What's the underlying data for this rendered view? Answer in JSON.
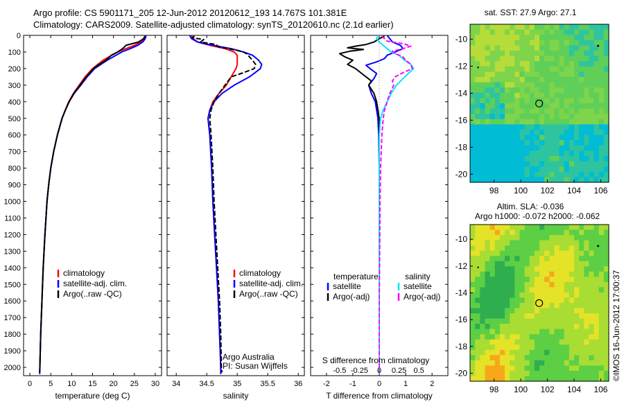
{
  "header": {
    "line1": "Argo profile: CS 5901171_205 12-Jun-2012 20120612_193 14.767S 101.381E",
    "line2": "Climatology: CARS2009. Satellite-adjusted climatology: synTS_20120610.nc (2.1d earlier)"
  },
  "colors": {
    "climatology": "#ff0000",
    "satellite": "#0000ff",
    "argo": "#000000",
    "sal_satellite": "#00e5ff",
    "sal_argo": "#ff00ff"
  },
  "depth_axis": {
    "ticks": [
      0,
      100,
      200,
      300,
      400,
      500,
      600,
      700,
      800,
      900,
      1000,
      1100,
      1200,
      1300,
      1400,
      1500,
      1600,
      1700,
      1800,
      1900,
      2000
    ],
    "ylim": [
      2050,
      0
    ]
  },
  "chart_data": [
    {
      "type": "line",
      "id": "temperature",
      "xlabel": "temperature (deg C)",
      "xlim": [
        -1.5,
        31.5
      ],
      "xticks": [
        0,
        5,
        10,
        15,
        20,
        25,
        30
      ],
      "xticklabels": [
        "0",
        "5",
        "10",
        "15",
        "20",
        "25",
        "30"
      ],
      "legend": [
        "climatology",
        "satellite-adj. clim.",
        "Argo(..raw -QC)"
      ],
      "series": [
        {
          "name": "climatology",
          "depth": [
            0,
            20,
            40,
            60,
            80,
            100,
            150,
            200,
            250,
            300,
            350,
            400,
            450,
            500,
            600,
            700,
            800,
            900,
            1000,
            1200,
            1400,
            1600,
            1800,
            2000,
            2040
          ],
          "values": [
            27.6,
            27.4,
            26.6,
            25.0,
            23.0,
            21.0,
            17.5,
            15.0,
            13.2,
            11.8,
            10.4,
            9.3,
            8.5,
            7.7,
            6.6,
            5.7,
            5.0,
            4.5,
            4.1,
            3.6,
            3.2,
            2.9,
            2.6,
            2.4,
            2.35
          ]
        },
        {
          "name": "satellite-adj. clim.",
          "depth": [
            0,
            20,
            40,
            60,
            80,
            100,
            150,
            200,
            250,
            300,
            350,
            400,
            450,
            500,
            600,
            700,
            800,
            900,
            1000,
            1200,
            1400,
            1600,
            1800,
            2000,
            2040
          ],
          "values": [
            27.8,
            27.6,
            27.0,
            25.8,
            24.0,
            22.0,
            18.5,
            15.5,
            13.7,
            12.2,
            10.6,
            9.4,
            8.5,
            7.7,
            6.6,
            5.7,
            5.0,
            4.5,
            4.1,
            3.6,
            3.2,
            2.9,
            2.6,
            2.4,
            2.35
          ]
        },
        {
          "name": "Argo(..raw -QC)",
          "depth": [
            5,
            20,
            40,
            60,
            80,
            100,
            120,
            150,
            180,
            200,
            250,
            300,
            350,
            400,
            450,
            500,
            600,
            700,
            800,
            900,
            1000,
            1200,
            1400,
            1600,
            1800,
            2000,
            2030
          ],
          "values": [
            27.5,
            27.2,
            26.0,
            23.0,
            22.2,
            21.0,
            19.5,
            18.2,
            16.3,
            15.2,
            13.5,
            12.0,
            10.5,
            9.4,
            8.5,
            7.7,
            6.6,
            5.7,
            5.0,
            4.5,
            4.1,
            3.6,
            3.2,
            2.9,
            2.6,
            2.4,
            2.35
          ]
        }
      ]
    },
    {
      "type": "line",
      "id": "salinity",
      "xlabel": "salinity",
      "xlim": [
        33.85,
        36.1
      ],
      "xticks": [
        34,
        34.5,
        35,
        35.5,
        36
      ],
      "xticklabels": [
        "34",
        "34.5",
        "35",
        "35.5",
        "36"
      ],
      "legend": [
        "climatology",
        "satellite-adj. clim.",
        "Argo(..raw -QC)"
      ],
      "annotations": [
        "Argo Australia",
        "PI: Susan Wijffels"
      ],
      "series": [
        {
          "name": "climatology",
          "depth": [
            0,
            20,
            40,
            60,
            80,
            100,
            120,
            150,
            175,
            200,
            250,
            300,
            350,
            400,
            450,
            500,
            600,
            800,
            1000,
            1200,
            1400,
            1600,
            1800,
            2000,
            2040
          ],
          "values": [
            34.25,
            34.28,
            34.35,
            34.55,
            34.8,
            34.95,
            35.0,
            35.0,
            35.0,
            34.98,
            34.9,
            34.82,
            34.7,
            34.6,
            34.55,
            34.52,
            34.55,
            34.58,
            34.6,
            34.63,
            34.66,
            34.69,
            34.71,
            34.73,
            34.73
          ]
        },
        {
          "name": "satellite-adj. clim.",
          "depth": [
            0,
            20,
            40,
            60,
            80,
            100,
            120,
            150,
            175,
            200,
            250,
            300,
            350,
            400,
            450,
            500,
            600,
            800,
            1000,
            1200,
            1400,
            1600,
            1800,
            2000,
            2040
          ],
          "values": [
            34.22,
            34.25,
            34.35,
            34.6,
            34.9,
            35.1,
            35.25,
            35.35,
            35.4,
            35.38,
            35.2,
            34.95,
            34.75,
            34.62,
            34.55,
            34.52,
            34.55,
            34.58,
            34.6,
            34.63,
            34.66,
            34.69,
            34.71,
            34.73,
            34.73
          ]
        },
        {
          "name": "Argo(..raw -QC)",
          "depth": [
            5,
            15,
            25,
            40,
            55,
            70,
            80,
            90,
            100,
            110,
            130,
            150,
            175,
            200,
            225,
            250,
            300,
            350,
            400,
            450,
            500,
            600,
            800,
            1000,
            1200,
            1400,
            1600,
            1800,
            2000,
            2030
          ],
          "values": [
            34.3,
            34.26,
            34.45,
            34.4,
            34.65,
            34.7,
            34.85,
            35.0,
            35.1,
            35.15,
            35.2,
            35.25,
            35.3,
            35.28,
            35.1,
            34.9,
            34.8,
            34.7,
            34.62,
            34.57,
            34.55,
            34.57,
            34.6,
            34.62,
            34.65,
            34.68,
            34.71,
            34.73,
            34.74,
            34.75
          ]
        }
      ]
    },
    {
      "type": "line",
      "id": "difference",
      "xlabel": "T difference from climatology",
      "xlabel_top": "S difference from climatology",
      "xlim": [
        -2.6,
        2.6
      ],
      "xticks": [
        -2,
        -1,
        0,
        1,
        2
      ],
      "xticklabels": [
        "-2",
        "-1",
        "0",
        "1",
        "2"
      ],
      "s_xticks_at": [
        -1.5,
        -0.75,
        0,
        0.75,
        1.5
      ],
      "s_xticklabels": [
        "-0.5",
        "-0.25",
        "0",
        "0.25",
        "0.5"
      ],
      "legend_titles": [
        "temperature",
        "salinity"
      ],
      "legend": [
        "satellite",
        "Argo(-adj)",
        "satellite",
        "Argo(-adj)"
      ],
      "series": [
        {
          "name": "temperature satellite",
          "depth": [
            0,
            40,
            60,
            80,
            100,
            120,
            140,
            160,
            180,
            200,
            230,
            260,
            300,
            350,
            400,
            450,
            500,
            600,
            800,
            1000,
            1200,
            1400,
            1600,
            1800,
            2000,
            2040
          ],
          "values": [
            0.3,
            0.5,
            0.8,
            0.9,
            0.6,
            0.3,
            0.2,
            -0.1,
            -0.5,
            -0.35,
            -0.1,
            -0.2,
            -0.4,
            -0.3,
            -0.15,
            -0.1,
            -0.05,
            -0.02,
            0.0,
            0.0,
            0.0,
            0.0,
            0.0,
            0.0,
            0.0,
            0.0
          ]
        },
        {
          "name": "temperature Argo(-adj)",
          "depth": [
            5,
            20,
            40,
            55,
            65,
            75,
            85,
            95,
            110,
            130,
            150,
            175,
            200,
            225,
            250,
            275,
            300,
            350,
            400,
            450,
            500,
            600,
            800,
            1000,
            1200,
            1400,
            1600,
            1800,
            2000,
            2030
          ],
          "values": [
            0.2,
            0.0,
            -0.2,
            -0.5,
            -0.9,
            -1.2,
            -0.6,
            -1.1,
            -1.5,
            -1.3,
            -1.0,
            -1.2,
            -0.9,
            -0.7,
            -0.5,
            -0.3,
            -0.4,
            -0.2,
            -0.1,
            -0.05,
            0.0,
            0.0,
            0.0,
            0.0,
            0.0,
            0.0,
            0.0,
            0.0,
            0.0,
            0.0
          ]
        },
        {
          "name": "salinity satellite",
          "depth": [
            0,
            20,
            40,
            60,
            80,
            100,
            120,
            150,
            175,
            200,
            230,
            260,
            300,
            350,
            400,
            450,
            500,
            600,
            800,
            1000,
            1200,
            1400,
            1600,
            1800,
            2000,
            2040
          ],
          "values": [
            -0.05,
            -0.1,
            0.0,
            0.15,
            0.3,
            0.45,
            0.75,
            0.95,
            1.2,
            1.3,
            1.1,
            0.9,
            0.65,
            0.45,
            0.3,
            0.15,
            0.05,
            0.0,
            0.0,
            0.0,
            0.0,
            0.0,
            0.0,
            0.0,
            0.0,
            0.0
          ]
        },
        {
          "name": "salinity Argo(-adj)",
          "depth": [
            5,
            20,
            35,
            50,
            65,
            80,
            95,
            110,
            130,
            150,
            175,
            200,
            225,
            250,
            275,
            300,
            350,
            400,
            450,
            500,
            600,
            800,
            1000,
            1200,
            1400,
            1600,
            1800,
            2000,
            2030
          ],
          "values": [
            0.1,
            0.2,
            0.3,
            0.9,
            1.2,
            0.9,
            0.5,
            0.6,
            0.9,
            1.0,
            1.2,
            1.25,
            0.9,
            0.6,
            0.5,
            0.55,
            0.4,
            0.3,
            0.2,
            0.15,
            0.1,
            0.05,
            0.03,
            0.02,
            0.01,
            0.0,
            0.0,
            0.0,
            0.0
          ]
        }
      ]
    },
    {
      "type": "heatmap",
      "id": "sst_map",
      "title": "sat. SST: 27.9  Argo: 27.1",
      "xlim": [
        96.2,
        106.6
      ],
      "ylim": [
        -20.6,
        -8.9
      ],
      "xticks": [
        98,
        100,
        102,
        104,
        106
      ],
      "yticks": [
        -10,
        -12,
        -14,
        -16,
        -18,
        -20
      ],
      "marker": {
        "lon": 101.381,
        "lat": -14.767
      },
      "palette": [
        "#00bcd4",
        "#2ec4a0",
        "#5fcf59",
        "#7ed44a",
        "#b6dc3a"
      ]
    },
    {
      "type": "heatmap",
      "id": "sla_map",
      "title": "Altim. SLA: -0.036",
      "subtitle": "Argo h1000: -0.072 h2000: -0.062",
      "xlim": [
        96.2,
        106.6
      ],
      "ylim": [
        -20.6,
        -8.9
      ],
      "xticks": [
        98,
        100,
        102,
        104,
        106
      ],
      "yticks": [
        -10,
        -12,
        -14,
        -16,
        -18,
        -20
      ],
      "marker": {
        "lon": 101.381,
        "lat": -14.767
      },
      "palette": [
        "#2fae4f",
        "#5ccf45",
        "#a9dd33",
        "#e4e328",
        "#f6a81a"
      ]
    }
  ],
  "side_label": "©IMOS 16-Jun-2012 17:00:37"
}
